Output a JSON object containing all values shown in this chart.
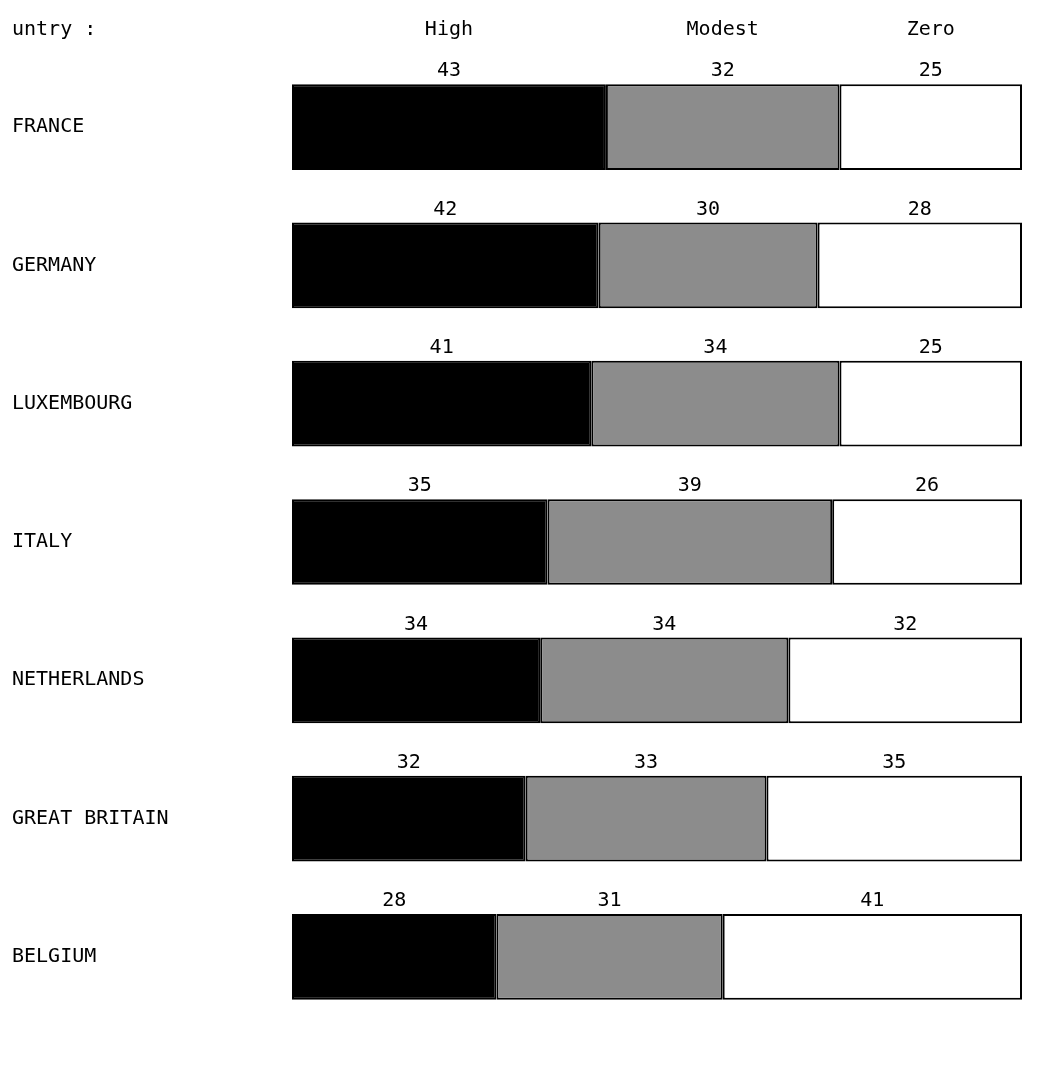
{
  "chart_data": {
    "type": "bar",
    "orientation": "horizontal",
    "stacked": true,
    "ylabel": "untry :",
    "categories": [
      "FRANCE",
      "GERMANY",
      "LUXEMBOURG",
      "ITALY",
      "NETHERLANDS",
      "GREAT BRITAIN",
      "BELGIUM"
    ],
    "series": [
      {
        "name": "High",
        "color": "#000000",
        "values": [
          43,
          42,
          41,
          35,
          34,
          32,
          28
        ]
      },
      {
        "name": "Modest",
        "color": "#8c8c8c",
        "values": [
          32,
          30,
          34,
          39,
          34,
          33,
          31
        ]
      },
      {
        "name": "Zero",
        "color": "#ffffff",
        "values": [
          25,
          28,
          25,
          26,
          32,
          35,
          41
        ]
      }
    ],
    "data_labels": true,
    "tick_labels": "y"
  }
}
